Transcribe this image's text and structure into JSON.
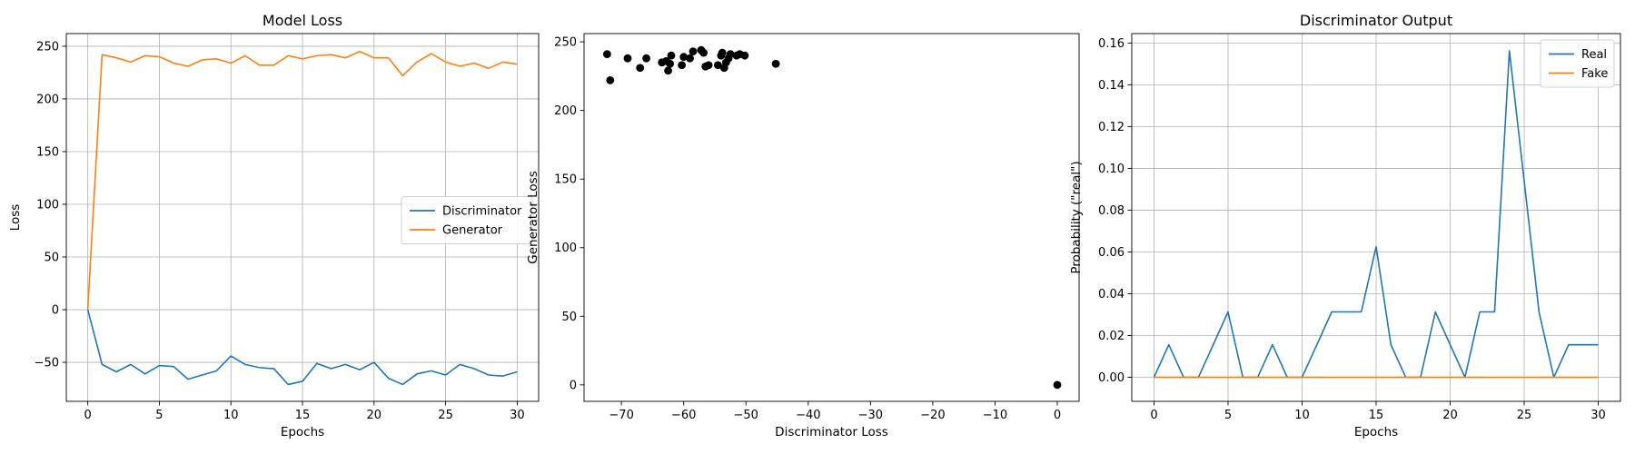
{
  "chart_data": [
    {
      "type": "line",
      "title": "Model Loss",
      "xlabel": "Epochs",
      "ylabel": "Loss",
      "xlim": [
        -1.5,
        31.5
      ],
      "ylim": [
        -87,
        262
      ],
      "xticks": [
        0,
        5,
        10,
        15,
        20,
        25,
        30
      ],
      "yticks": [
        -50,
        0,
        50,
        100,
        150,
        200,
        250
      ],
      "grid": true,
      "legend": "center-right",
      "x": [
        0,
        1,
        2,
        3,
        4,
        5,
        6,
        7,
        8,
        9,
        10,
        11,
        12,
        13,
        14,
        15,
        16,
        17,
        18,
        19,
        20,
        21,
        22,
        23,
        24,
        25,
        26,
        27,
        28,
        29,
        30
      ],
      "series": [
        {
          "name": "Discriminator",
          "color": "#1f77b4",
          "values": [
            0,
            -52,
            -59,
            -52,
            -61,
            -53,
            -54,
            -66,
            -62,
            -58,
            -44,
            -52,
            -55,
            -56,
            -71,
            -68,
            -51,
            -56,
            -52,
            -57,
            -50,
            -65,
            -71,
            -61,
            -58,
            -62,
            -52,
            -56,
            -62,
            -63,
            -59
          ]
        },
        {
          "name": "Generator",
          "color": "#ff7f0e",
          "values": [
            0,
            242,
            239,
            235,
            241,
            240,
            234,
            231,
            237,
            238,
            234,
            241,
            232,
            232,
            241,
            238,
            241,
            242,
            239,
            245,
            239,
            239,
            222,
            235,
            243,
            235,
            231,
            234,
            229,
            235,
            233
          ]
        }
      ]
    },
    {
      "type": "scatter",
      "title": "",
      "xlabel": "Discriminator Loss",
      "ylabel": "Generator Loss",
      "xlim": [
        -76,
        3.5
      ],
      "ylim": [
        -12,
        256
      ],
      "xticks": [
        -70,
        -60,
        -50,
        -40,
        -30,
        -20,
        -10,
        0
      ],
      "yticks": [
        0,
        50,
        100,
        150,
        200,
        250
      ],
      "grid": false,
      "color": "#000000",
      "points": [
        [
          0,
          0
        ],
        [
          -72.3,
          241
        ],
        [
          -71.8,
          222
        ],
        [
          -69,
          238
        ],
        [
          -67,
          231
        ],
        [
          -66,
          238
        ],
        [
          -63.5,
          235
        ],
        [
          -62.8,
          236
        ],
        [
          -62.5,
          229
        ],
        [
          -62.2,
          234
        ],
        [
          -62,
          240
        ],
        [
          -60.3,
          233
        ],
        [
          -60,
          239
        ],
        [
          -59,
          238
        ],
        [
          -58.5,
          243
        ],
        [
          -57.2,
          244
        ],
        [
          -56.8,
          242
        ],
        [
          -56.5,
          232
        ],
        [
          -56,
          233
        ],
        [
          -54.5,
          233
        ],
        [
          -54,
          240
        ],
        [
          -53.8,
          242
        ],
        [
          -53.5,
          231
        ],
        [
          -53.2,
          235
        ],
        [
          -52.8,
          238
        ],
        [
          -52.5,
          241
        ],
        [
          -51.5,
          240
        ],
        [
          -51,
          241
        ],
        [
          -50.2,
          240
        ],
        [
          -45.2,
          234
        ]
      ]
    },
    {
      "type": "line",
      "title": "Discriminator Output",
      "xlabel": "Epochs",
      "ylabel": "Probability (\"real\")",
      "xlim": [
        -1.5,
        31.5
      ],
      "ylim": [
        -0.0115,
        0.1645
      ],
      "xticks": [
        0,
        5,
        10,
        15,
        20,
        25,
        30
      ],
      "yticks": [
        0.0,
        0.02,
        0.04,
        0.06,
        0.08,
        0.1,
        0.12,
        0.14,
        0.16
      ],
      "ytick_labels": [
        "0.00",
        "0.02",
        "0.04",
        "0.06",
        "0.08",
        "0.10",
        "0.12",
        "0.14",
        "0.16"
      ],
      "grid": true,
      "legend": "top-right",
      "x": [
        0,
        1,
        2,
        3,
        4,
        5,
        6,
        7,
        8,
        9,
        10,
        11,
        12,
        13,
        14,
        15,
        16,
        17,
        18,
        19,
        20,
        21,
        22,
        23,
        24,
        25,
        26,
        27,
        28,
        29,
        30
      ],
      "series": [
        {
          "name": "Real",
          "color": "#1f77b4",
          "values": [
            0,
            0.0156,
            0,
            0,
            0.0156,
            0.0313,
            0,
            0,
            0.0156,
            0,
            0,
            0.0156,
            0.0313,
            0.0313,
            0.0313,
            0.0625,
            0.0156,
            0,
            0,
            0.0313,
            0.0156,
            0,
            0.0313,
            0.0313,
            0.1563,
            0.0938,
            0.0313,
            0,
            0.0156,
            0.0156,
            0.0156
          ]
        },
        {
          "name": "Fake",
          "color": "#ff7f0e",
          "values": [
            0,
            0,
            0,
            0,
            0,
            0,
            0,
            0,
            0,
            0,
            0,
            0,
            0,
            0,
            0,
            0,
            0,
            0,
            0,
            0,
            0,
            0,
            0,
            0,
            0,
            0,
            0,
            0,
            0,
            0,
            0
          ]
        }
      ]
    }
  ]
}
